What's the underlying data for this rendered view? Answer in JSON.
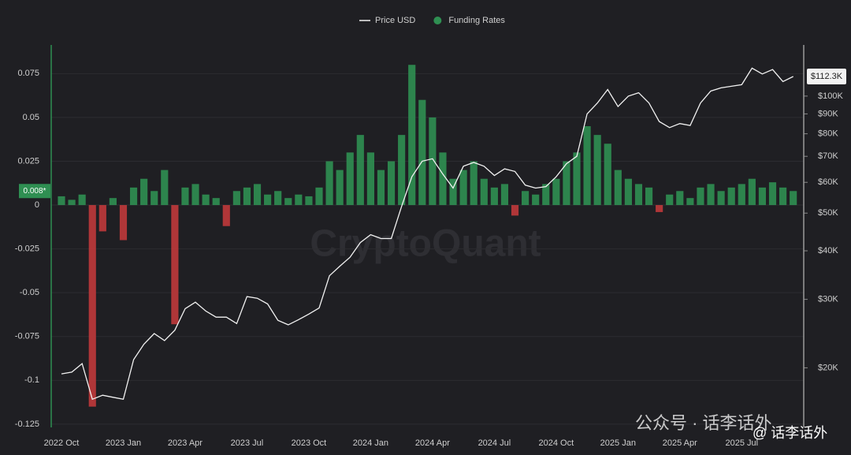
{
  "chart_data": {
    "type": "combo",
    "watermark": "CryptoQuant",
    "overlay": [
      "公众号 · 话李话外",
      "@ 话李话外"
    ],
    "categories": [
      "2022 Oct",
      null,
      null,
      null,
      null,
      null,
      "2023 Jan",
      null,
      null,
      null,
      null,
      null,
      "2023 Apr",
      null,
      null,
      null,
      null,
      null,
      "2023 Jul",
      null,
      null,
      null,
      null,
      null,
      "2023 Oct",
      null,
      null,
      null,
      null,
      null,
      "2024 Jan",
      null,
      null,
      null,
      null,
      null,
      "2024 Apr",
      null,
      null,
      null,
      null,
      null,
      "2024 Jul",
      null,
      null,
      null,
      null,
      null,
      "2024 Oct",
      null,
      null,
      null,
      null,
      null,
      "2025 Jan",
      null,
      null,
      null,
      null,
      null,
      "2025 Apr",
      null,
      null,
      null,
      null,
      null,
      "2025 Jul",
      null,
      null,
      null,
      null,
      null
    ],
    "series": [
      {
        "name": "Price USD",
        "type": "line",
        "axis": "y2",
        "color": "#f2f2f2",
        "values": [
          19300,
          19500,
          20500,
          16600,
          17000,
          16800,
          16600,
          21000,
          23000,
          24500,
          23500,
          25000,
          28400,
          29500,
          28000,
          27000,
          27000,
          26000,
          30500,
          30200,
          29200,
          26500,
          25800,
          26600,
          27500,
          28500,
          34500,
          36500,
          38500,
          42000,
          44000,
          43000,
          43000,
          52000,
          62000,
          68000,
          69000,
          63000,
          58000,
          66000,
          67500,
          66000,
          62500,
          65000,
          64000,
          59000,
          58000,
          58500,
          62000,
          67000,
          70000,
          90000,
          96000,
          104000,
          94000,
          100000,
          102000,
          96000,
          86000,
          83000,
          85000,
          84000,
          96000,
          103000,
          105000,
          106000,
          107000,
          118000,
          114000,
          117000,
          109000,
          112300
        ]
      },
      {
        "name": "Funding Rates",
        "type": "bar",
        "color": "#2f8f52",
        "negative_color": "#c0393b",
        "values": [
          0.005,
          0.003,
          0.006,
          -0.115,
          -0.015,
          0.004,
          -0.02,
          0.01,
          0.015,
          0.008,
          0.02,
          -0.068,
          0.01,
          0.012,
          0.006,
          0.004,
          -0.012,
          0.008,
          0.01,
          0.012,
          0.006,
          0.008,
          0.004,
          0.006,
          0.005,
          0.01,
          0.025,
          0.02,
          0.03,
          0.04,
          0.03,
          0.02,
          0.025,
          0.04,
          0.08,
          0.06,
          0.05,
          0.03,
          0.015,
          0.02,
          0.025,
          0.015,
          0.01,
          0.012,
          -0.006,
          0.008,
          0.006,
          0.012,
          0.015,
          0.025,
          0.03,
          0.045,
          0.04,
          0.035,
          0.02,
          0.015,
          0.012,
          0.01,
          -0.004,
          0.006,
          0.008,
          0.004,
          0.01,
          0.012,
          0.008,
          0.01,
          0.012,
          0.015,
          0.01,
          0.013,
          0.01,
          0.008
        ]
      }
    ],
    "current_labels": {
      "y": "0.008*",
      "y2": "$112.3K"
    },
    "ylim": [
      -0.13,
      0.09
    ],
    "yticks": [
      -0.125,
      -0.1,
      -0.075,
      -0.05,
      -0.025,
      0,
      0.025,
      0.05,
      0.075
    ],
    "y2lim": [
      13600,
      133500
    ],
    "y2_log": true,
    "y2ticks": [
      {
        "value": 20000,
        "label": "$20K"
      },
      {
        "value": 30000,
        "label": "$30K"
      },
      {
        "value": 40000,
        "label": "$40K"
      },
      {
        "value": 50000,
        "label": "$50K"
      },
      {
        "value": 60000,
        "label": "$60K"
      },
      {
        "value": 70000,
        "label": "$70K"
      },
      {
        "value": 80000,
        "label": "$80K"
      },
      {
        "value": 90000,
        "label": "$90K"
      },
      {
        "value": 100000,
        "label": "$100K"
      }
    ],
    "grid": true
  }
}
